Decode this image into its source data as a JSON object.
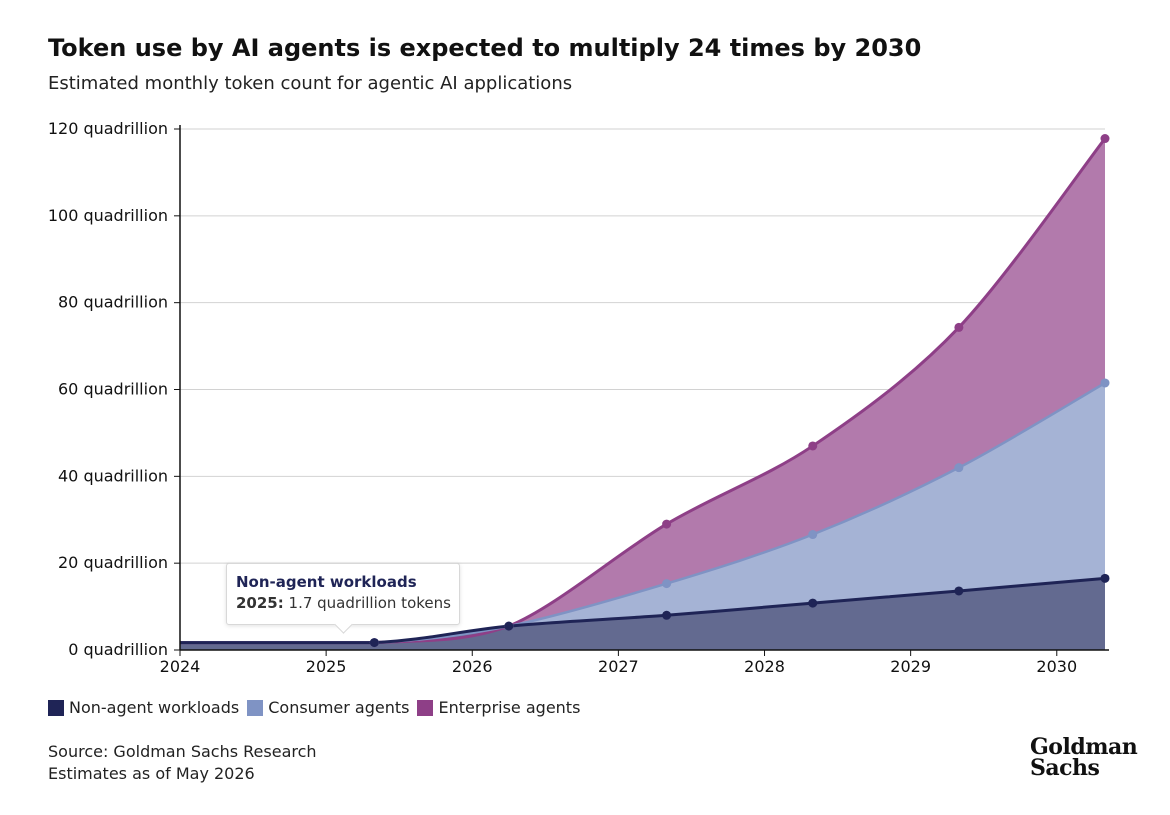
{
  "header": {
    "title": "Token use by AI agents is expected to multiply 24 times by 2030",
    "subtitle": "Estimated monthly token count for agentic AI applications"
  },
  "colors": {
    "non_agent_line": "#1f2456",
    "non_agent_fill": "#636a90",
    "consumer_line": "#7f93c4",
    "consumer_fill": "#a5b3d5",
    "enterprise_line": "#8e3f87",
    "enterprise_fill": "#b27aac",
    "grid": "#d2d2d2"
  },
  "tooltip": {
    "series": "Non-agent workloads",
    "year": "2025:",
    "value": "1.7 quadrillion tokens"
  },
  "legend": {
    "items": [
      {
        "label": "Non-agent workloads",
        "color": "#1f2456"
      },
      {
        "label": "Consumer agents",
        "color": "#7f93c4"
      },
      {
        "label": "Enterprise agents",
        "color": "#8e3f87"
      }
    ]
  },
  "footer": {
    "source": "Source: Goldman Sachs Research",
    "estimates": "Estimates as of May 2026"
  },
  "logo": {
    "line1": "Goldman",
    "line2": "Sachs"
  },
  "chart_data": {
    "type": "area",
    "stacked": true,
    "x": [
      2024.0,
      2025.33,
      2026.25,
      2027.33,
      2028.33,
      2029.33,
      2030.33
    ],
    "x_ticks": [
      "2024",
      "2025",
      "2026",
      "2027",
      "2028",
      "2029",
      "2030"
    ],
    "y_ticks": [
      "0 quadrillion",
      "20 quadrillion",
      "40 quadrillion",
      "60 quadrillion",
      "80 quadrillion",
      "100 quadrillion",
      "120 quadrillion"
    ],
    "xlim": [
      2024,
      2030.33
    ],
    "ylim": [
      0,
      120
    ],
    "grid": true,
    "legend_position": "bottom-left",
    "series": [
      {
        "name": "Non-agent workloads",
        "cumulative": [
          1.7,
          1.7,
          5.5,
          8.0,
          10.8,
          13.6,
          16.5
        ]
      },
      {
        "name": "Consumer agents",
        "cumulative": [
          1.7,
          1.7,
          5.5,
          15.3,
          26.6,
          42.0,
          61.5
        ]
      },
      {
        "name": "Enterprise agents",
        "cumulative": [
          1.7,
          1.7,
          5.5,
          29.0,
          47.0,
          74.3,
          117.8
        ]
      }
    ]
  }
}
